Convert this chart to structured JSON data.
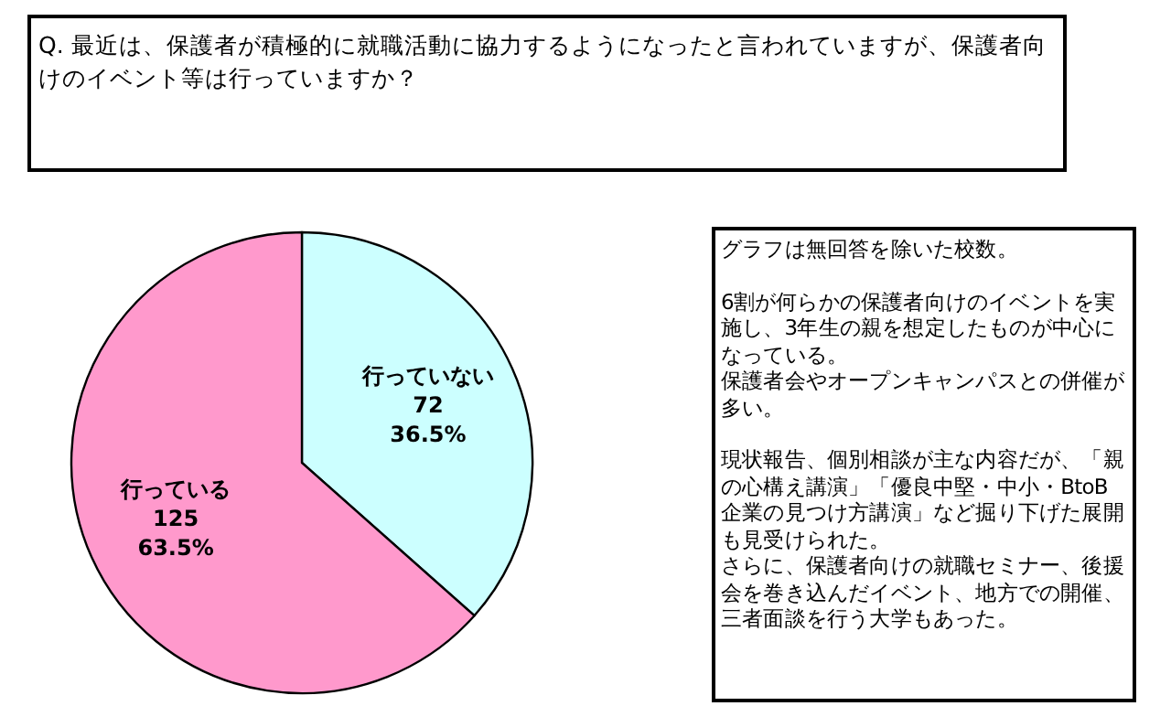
{
  "chart_data": {
    "type": "pie",
    "title": "Q. 最近は、保護者が積極的に就職活動に協力するようになったと言われていますが、保護者向けのイベント等は行っていますか？",
    "categories": [
      "行っていない",
      "行っている"
    ],
    "values": [
      72,
      125
    ],
    "colors": [
      "#ccffff",
      "#ff99cc"
    ],
    "value_labels": [
      "72\n36.5%",
      "125\n63.5%"
    ],
    "annotations": [
      "グラフは無回答を除いた校数。",
      "6割が何らかの保護者向けのイベントを実施し、3年生の親を想定したものが中心になっている。",
      "保護者会やオープンキャンパスとの併催が多い。",
      "現状報告、個別相談が主な内容だが、「親の心構え講演」「優良中堅・中小・BtoB企業の見つけ方講演」など掘り下げた展開も見受けられた。",
      "さらに、保護者向けの就職セミナー、後援会を巻き込んだイベント、地方での開催、三者面談を行う大学もあった。"
    ]
  }
}
